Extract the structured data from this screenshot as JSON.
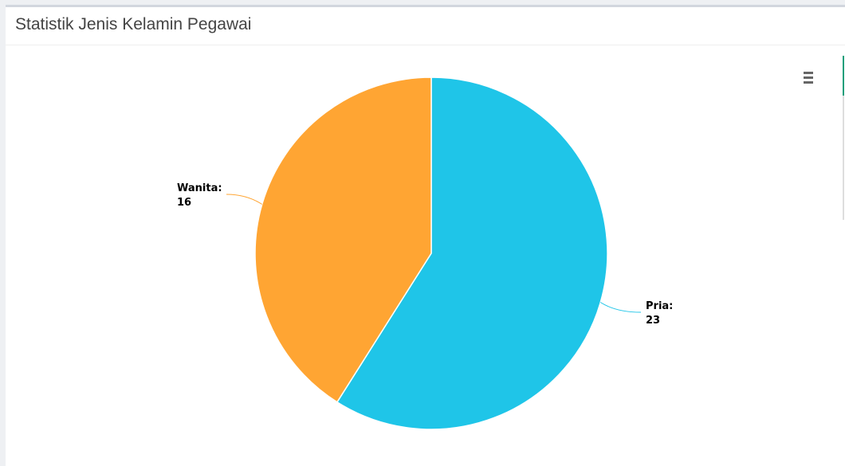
{
  "chart_data": {
    "type": "pie",
    "title": "Statistik Jenis Kelamin Pegawai",
    "categories": [
      "Pria:",
      "Wanita:"
    ],
    "values": [
      23,
      16
    ],
    "colors": [
      "#1fc5e8",
      "#ffa533"
    ]
  }
}
